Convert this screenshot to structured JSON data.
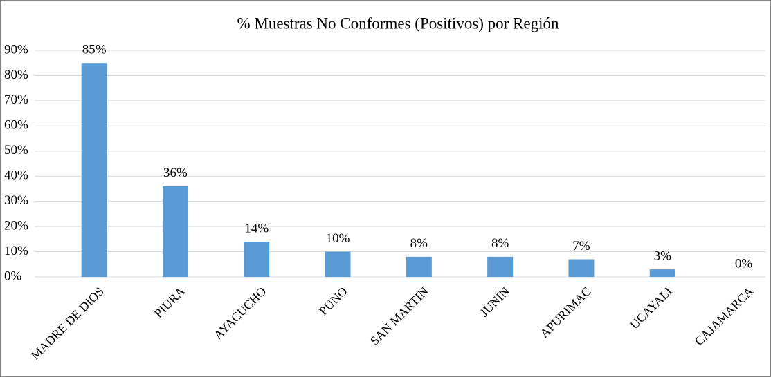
{
  "chart_data": {
    "type": "bar",
    "title": "% Muestras No Conformes (Positivos) por Región",
    "categories": [
      "MADRE DE DIOS",
      "PIURA",
      "AYACUCHO",
      "PUNO",
      "SAN MARTIN",
      "JUNÍN",
      "APURIMAC",
      "UCAYALI",
      "CAJAMARCA"
    ],
    "values": [
      85,
      36,
      14,
      10,
      8,
      8,
      7,
      3,
      0
    ],
    "value_labels": [
      "85%",
      "36%",
      "14%",
      "10%",
      "8%",
      "8%",
      "7%",
      "3%",
      "0%"
    ],
    "color": "#5b9bd5",
    "ylim": [
      0,
      90
    ],
    "yticks": [
      {
        "value": 0,
        "label": "0%"
      },
      {
        "value": 10,
        "label": "10%"
      },
      {
        "value": 20,
        "label": "20%"
      },
      {
        "value": 30,
        "label": "30%"
      },
      {
        "value": 40,
        "label": "40%"
      },
      {
        "value": 50,
        "label": "50%"
      },
      {
        "value": 60,
        "label": "60%"
      },
      {
        "value": 70,
        "label": "70%"
      },
      {
        "value": 80,
        "label": "80%"
      },
      {
        "value": 90,
        "label": "90%"
      }
    ],
    "grid": true
  }
}
